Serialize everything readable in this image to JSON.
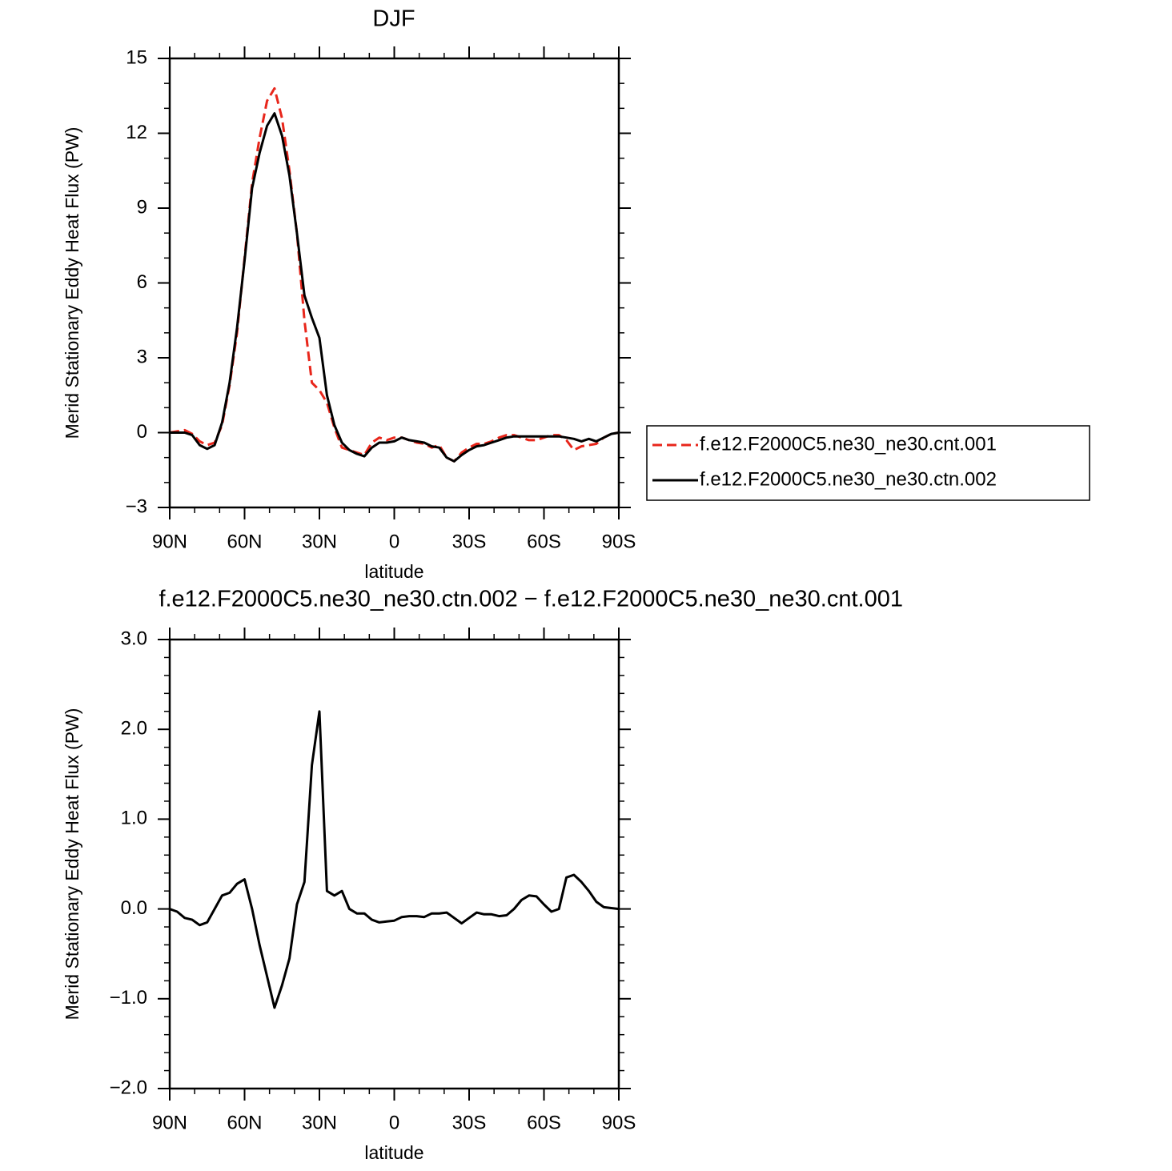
{
  "chart_data": [
    {
      "type": "line",
      "title": "DJF",
      "xlabel": "latitude",
      "ylabel": "Merid Stationary Eddy Heat Flux (PW)",
      "x": [
        90,
        87,
        84,
        81,
        78,
        75,
        72,
        69,
        66,
        63,
        60,
        57,
        54,
        51,
        48,
        45,
        42,
        39,
        36,
        33,
        30,
        27,
        24,
        21,
        18,
        15,
        12,
        9,
        6,
        3,
        0,
        -3,
        -6,
        -9,
        -12,
        -15,
        -18,
        -21,
        -24,
        -27,
        -30,
        -33,
        -36,
        -39,
        -42,
        -45,
        -48,
        -51,
        -54,
        -57,
        -60,
        -63,
        -66,
        -69,
        -72,
        -75,
        -78,
        -81,
        -84,
        -87,
        -90
      ],
      "series": [
        {
          "name": "f.e12.F2000C5.ne30_ne30.cnt.001",
          "color": "#e8261b",
          "dash": true,
          "values": [
            0,
            0.05,
            0.1,
            -0.05,
            -0.35,
            -0.5,
            -0.4,
            0.3,
            1.9,
            4.0,
            7.0,
            10.0,
            11.8,
            13.3,
            13.8,
            12.6,
            10.5,
            8.0,
            4.5,
            2.0,
            1.7,
            1.2,
            0.2,
            -0.6,
            -0.7,
            -0.8,
            -0.9,
            -0.4,
            -0.2,
            -0.3,
            -0.2,
            -0.2,
            -0.3,
            -0.4,
            -0.45,
            -0.6,
            -0.5,
            -1.0,
            -1.15,
            -0.8,
            -0.6,
            -0.45,
            -0.45,
            -0.35,
            -0.2,
            -0.1,
            -0.1,
            -0.2,
            -0.3,
            -0.3,
            -0.2,
            -0.1,
            -0.1,
            -0.3,
            -0.7,
            -0.55,
            -0.5,
            -0.45,
            -0.2,
            -0.05,
            0
          ]
        },
        {
          "name": "f.e12.F2000C5.ne30_ne30.ctn.002",
          "color": "#000000",
          "dash": false,
          "values": [
            0,
            0,
            0,
            -0.1,
            -0.5,
            -0.65,
            -0.5,
            0.4,
            2.0,
            4.2,
            6.9,
            9.8,
            11.2,
            12.3,
            12.8,
            11.9,
            10.3,
            8.0,
            5.5,
            4.6,
            3.8,
            1.5,
            0.3,
            -0.4,
            -0.7,
            -0.85,
            -0.95,
            -0.6,
            -0.4,
            -0.4,
            -0.35,
            -0.2,
            -0.3,
            -0.35,
            -0.4,
            -0.55,
            -0.6,
            -1.0,
            -1.15,
            -0.9,
            -0.7,
            -0.55,
            -0.5,
            -0.4,
            -0.3,
            -0.2,
            -0.15,
            -0.15,
            -0.15,
            -0.15,
            -0.15,
            -0.15,
            -0.15,
            -0.2,
            -0.25,
            -0.35,
            -0.25,
            -0.35,
            -0.2,
            -0.05,
            0
          ]
        }
      ],
      "xlim": [
        90,
        -90
      ],
      "xticks": [
        {
          "value": 90,
          "label": "90N"
        },
        {
          "value": 60,
          "label": "60N"
        },
        {
          "value": 30,
          "label": "30N"
        },
        0,
        {
          "value": -30,
          "label": "30S"
        },
        {
          "value": -60,
          "label": "60S"
        },
        {
          "value": -90,
          "label": "90S"
        }
      ],
      "xminorticks": [
        80,
        70,
        50,
        40,
        20,
        10,
        -10,
        -20,
        -40,
        -50,
        -70,
        -80
      ],
      "ylim": [
        -3,
        15
      ],
      "yticks": [
        {
          "value": -3,
          "label": "−3"
        },
        0,
        3,
        6,
        9,
        12,
        15
      ],
      "yminorticks": [
        -2,
        -1,
        1,
        2,
        4,
        5,
        7,
        8,
        10,
        11,
        13,
        14
      ],
      "legend": "right"
    },
    {
      "type": "line",
      "title": "f.e12.F2000C5.ne30_ne30.ctn.002 − f.e12.F2000C5.ne30_ne30.cnt.001",
      "xlabel": "latitude",
      "ylabel": "Merid Stationary Eddy Heat Flux (PW)",
      "x": [
        90,
        87,
        84,
        81,
        78,
        75,
        72,
        69,
        66,
        63,
        60,
        57,
        54,
        51,
        48,
        45,
        42,
        39,
        36,
        33,
        30,
        27,
        24,
        21,
        18,
        15,
        12,
        9,
        6,
        3,
        0,
        -3,
        -6,
        -9,
        -12,
        -15,
        -18,
        -21,
        -24,
        -27,
        -30,
        -33,
        -36,
        -39,
        -42,
        -45,
        -48,
        -51,
        -54,
        -57,
        -60,
        -63,
        -66,
        -69,
        -72,
        -75,
        -78,
        -81,
        -84,
        -87,
        -90
      ],
      "series": [
        {
          "color": "#000000",
          "dash": false,
          "values": [
            0,
            -0.03,
            -0.1,
            -0.12,
            -0.18,
            -0.15,
            0.0,
            0.15,
            0.18,
            0.28,
            0.33,
            0.0,
            -0.4,
            -0.75,
            -1.1,
            -0.85,
            -0.55,
            0.05,
            0.3,
            1.6,
            2.2,
            0.2,
            0.15,
            0.2,
            0.0,
            -0.05,
            -0.05,
            -0.12,
            -0.15,
            -0.14,
            -0.13,
            -0.09,
            -0.08,
            -0.08,
            -0.09,
            -0.05,
            -0.05,
            -0.04,
            -0.1,
            -0.16,
            -0.1,
            -0.04,
            -0.06,
            -0.06,
            -0.08,
            -0.07,
            0.0,
            0.1,
            0.15,
            0.14,
            0.05,
            -0.03,
            0.0,
            0.35,
            0.38,
            0.3,
            0.2,
            0.08,
            0.02,
            0.01,
            0
          ]
        }
      ],
      "xlim": [
        90,
        -90
      ],
      "xticks": [
        {
          "value": 90,
          "label": "90N"
        },
        {
          "value": 60,
          "label": "60N"
        },
        {
          "value": 30,
          "label": "30N"
        },
        0,
        {
          "value": -30,
          "label": "30S"
        },
        {
          "value": -60,
          "label": "60S"
        },
        {
          "value": -90,
          "label": "90S"
        }
      ],
      "xminorticks": [
        80,
        70,
        50,
        40,
        20,
        10,
        -10,
        -20,
        -40,
        -50,
        -70,
        -80
      ],
      "ylim": [
        -2,
        3
      ],
      "yticks": [
        {
          "value": -2,
          "label": "−2.0"
        },
        {
          "value": -1,
          "label": "−1.0"
        },
        {
          "value": 0,
          "label": "0.0"
        },
        {
          "value": 1,
          "label": "1.0"
        },
        {
          "value": 2,
          "label": "2.0"
        },
        {
          "value": 3,
          "label": "3.0"
        }
      ],
      "yminorticks": [
        -1.8,
        -1.6,
        -1.4,
        -1.2,
        -0.8,
        -0.6,
        -0.4,
        -0.2,
        0.2,
        0.4,
        0.6,
        0.8,
        1.2,
        1.4,
        1.6,
        1.8,
        2.2,
        2.4,
        2.6,
        2.8
      ]
    }
  ]
}
